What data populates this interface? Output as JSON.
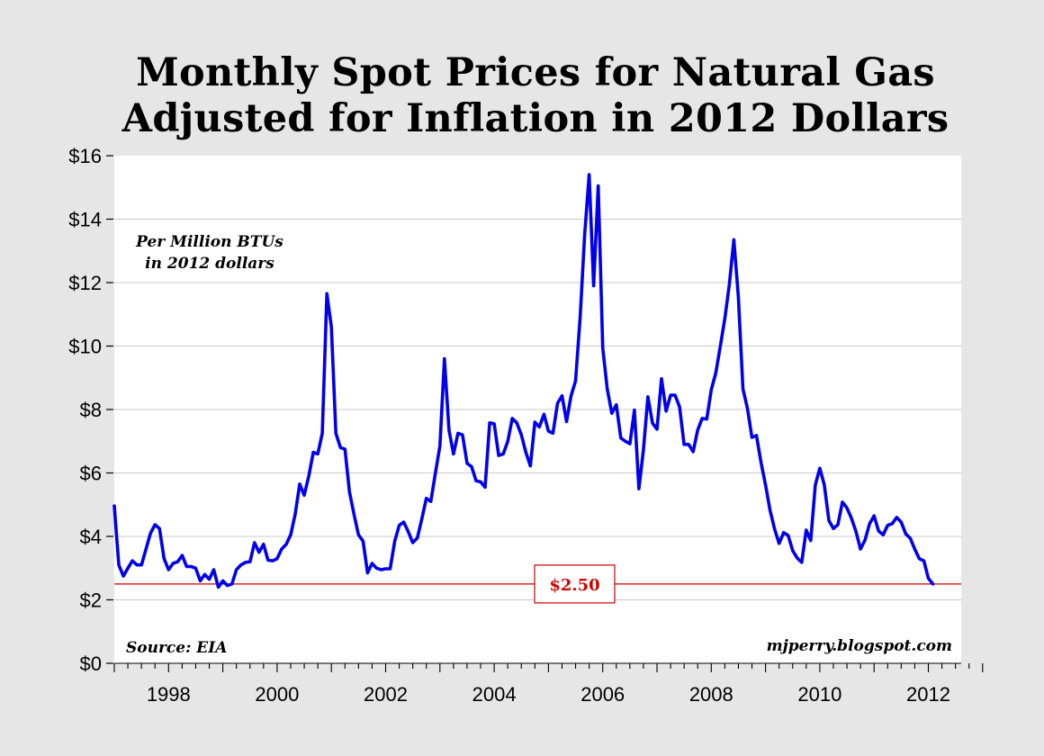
{
  "chart_data": {
    "type": "line",
    "title": "Monthly Spot Prices for Natural Gas Adjusted for Inflation in 2012 Dollars",
    "title_lines": [
      "Monthly Spot Prices for Natural Gas",
      "Adjusted for Inflation in 2012 Dollars"
    ],
    "xlabel": "",
    "ylabel": "",
    "x_start": {
      "year": 1997,
      "month": 1
    },
    "x_end": {
      "year": 2012,
      "month": 2
    },
    "xlim": [
      1997,
      2013.1
    ],
    "ylim": [
      0,
      16
    ],
    "grid": true,
    "yticks": [
      0,
      2,
      4,
      6,
      8,
      10,
      12,
      14,
      16
    ],
    "ytick_labels": [
      "$0",
      "$2",
      "$4",
      "$6",
      "$8",
      "$10",
      "$12",
      "$14",
      "$16"
    ],
    "xticks": [
      1998,
      2000,
      2002,
      2004,
      2006,
      2008,
      2010,
      2012
    ],
    "xtick_labels": [
      "1998",
      "2000",
      "2002",
      "2004",
      "2006",
      "2008",
      "2010",
      "2012"
    ],
    "series": [
      {
        "name": "Natural gas spot price (2012 $ per million BTU)",
        "color": "#0000ee",
        "frequency": "monthly",
        "values": [
          4.96,
          3.1,
          2.75,
          3.0,
          3.23,
          3.1,
          3.1,
          3.6,
          4.1,
          4.37,
          4.25,
          3.3,
          2.95,
          3.15,
          3.2,
          3.4,
          3.05,
          3.05,
          3.0,
          2.6,
          2.8,
          2.65,
          2.95,
          2.4,
          2.6,
          2.45,
          2.5,
          2.95,
          3.1,
          3.18,
          3.2,
          3.8,
          3.5,
          3.75,
          3.25,
          3.23,
          3.3,
          3.6,
          3.75,
          4.05,
          4.7,
          5.65,
          5.3,
          5.9,
          6.65,
          6.6,
          7.25,
          11.65,
          10.6,
          7.25,
          6.8,
          6.75,
          5.4,
          4.7,
          4.05,
          3.85,
          2.85,
          3.15,
          3.0,
          2.95,
          2.98,
          2.98,
          3.85,
          4.35,
          4.45,
          4.15,
          3.8,
          3.95,
          4.55,
          5.2,
          5.1,
          6.0,
          6.85,
          9.6,
          7.35,
          6.6,
          7.25,
          7.2,
          6.3,
          6.2,
          5.75,
          5.72,
          5.55,
          7.58,
          7.55,
          6.55,
          6.6,
          7.0,
          7.72,
          7.58,
          7.2,
          6.65,
          6.22,
          7.6,
          7.45,
          7.85,
          7.32,
          7.25,
          8.2,
          8.43,
          7.62,
          8.43,
          8.9,
          10.9,
          13.5,
          15.4,
          11.9,
          15.05,
          9.95,
          8.65,
          7.88,
          8.15,
          7.1,
          7.0,
          6.92,
          7.98,
          5.5,
          6.72,
          8.4,
          7.57,
          7.38,
          8.97,
          7.95,
          8.45,
          8.45,
          8.08,
          6.9,
          6.9,
          6.67,
          7.35,
          7.72,
          7.7,
          8.62,
          9.15,
          10.0,
          10.87,
          11.95,
          13.35,
          11.55,
          8.65,
          8.03,
          7.12,
          7.18,
          6.33,
          5.62,
          4.82,
          4.23,
          3.78,
          4.12,
          4.03,
          3.55,
          3.32,
          3.18,
          4.2,
          3.87,
          5.62,
          6.15,
          5.62,
          4.5,
          4.25,
          4.37,
          5.08,
          4.9,
          4.57,
          4.15,
          3.6,
          3.88,
          4.4,
          4.65,
          4.17,
          4.05,
          4.35,
          4.4,
          4.6,
          4.45,
          4.08,
          3.94,
          3.6,
          3.3,
          3.23,
          2.68,
          2.5
        ]
      }
    ],
    "reference_line": {
      "value": 2.5,
      "color": "#cc0000",
      "label": "$2.50"
    },
    "annotations": {
      "units_line1": "Per Million BTUs",
      "units_line2": "in 2012 dollars",
      "source": "Source: EIA",
      "credit": "mjperry.blogspot.com"
    },
    "legend": "none"
  }
}
